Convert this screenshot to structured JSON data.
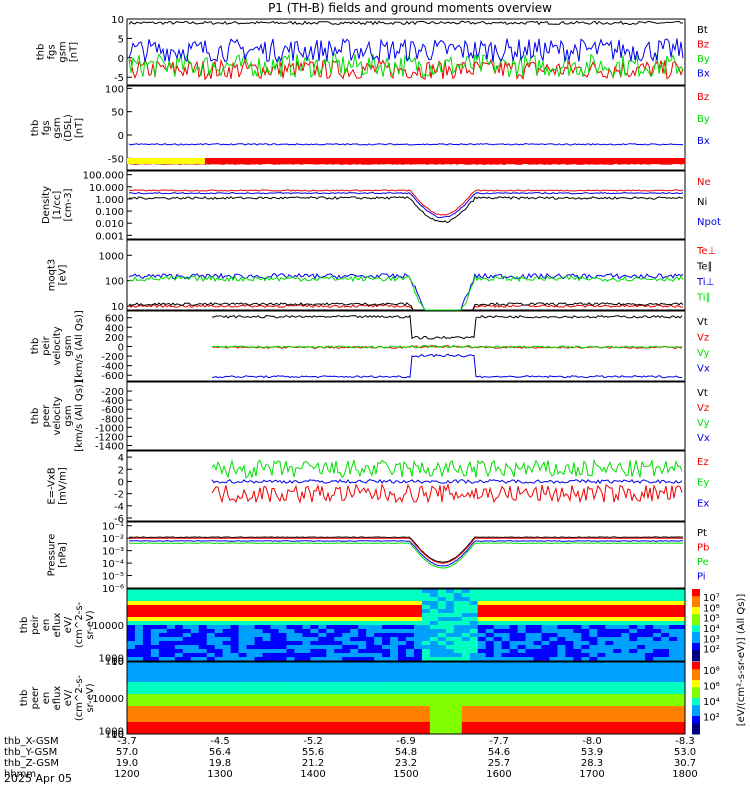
{
  "title": "P1 (TH-B) fields and ground moments overview",
  "date_label": "2025 Apr 05",
  "colors": {
    "black": "#000000",
    "red": "#ee0000",
    "green": "#00dd00",
    "blue": "#0000ee",
    "yellow": "#ffff00",
    "barred": "#ff0000"
  },
  "chart_data": [
    {
      "id": "fgs",
      "type": "line",
      "ylabel": [
        "thb",
        "fgs",
        "gsm",
        "[nT]"
      ],
      "ylim": [
        -7,
        10
      ],
      "yticks": [
        "10",
        "5",
        "0",
        "-5"
      ],
      "ytickvals": [
        10,
        5,
        0,
        -5
      ],
      "series": [
        {
          "name": "Bt",
          "color": "black",
          "base": 9,
          "noise": 0.4
        },
        {
          "name": "Bz",
          "color": "red",
          "base": -3,
          "noise": 2.5
        },
        {
          "name": "By",
          "color": "green",
          "base": -2,
          "noise": 3
        },
        {
          "name": "Bx",
          "color": "blue",
          "base": 2,
          "noise": 3
        }
      ]
    },
    {
      "id": "fgs_dsl",
      "type": "line",
      "ylabel": [
        "thb",
        "fgs",
        "gsm",
        "(DSL)",
        "[nT]"
      ],
      "ylim": [
        -75,
        105
      ],
      "yticks": [
        "100",
        "50",
        "0",
        "-50"
      ],
      "ytickvals": [
        100,
        50,
        0,
        -50
      ],
      "series": [
        {
          "name": "Bz",
          "color": "red",
          "base": -62,
          "noise": 1
        },
        {
          "name": "By",
          "color": "green",
          "base": -60,
          "noise": 2
        },
        {
          "name": "Bx",
          "color": "blue",
          "base": -20,
          "noise": 1.5
        }
      ]
    },
    {
      "id": "density",
      "type": "line",
      "log": true,
      "ylabel": [
        "Density",
        "[1/cc]",
        "[cm-3]"
      ],
      "ylim": [
        0.0005,
        200
      ],
      "yticks": [
        "100.000",
        "10.000",
        "1.000",
        "0.100",
        "0.010",
        "0.001"
      ],
      "ytickvals": [
        100,
        10,
        1,
        0.1,
        0.01,
        0.001
      ],
      "series": [
        {
          "name": "Ne",
          "color": "red",
          "base": 5,
          "noise": 0.1
        },
        {
          "name": "Ni",
          "color": "black",
          "base": 1.2,
          "noise": 0.2
        },
        {
          "name": "Npot",
          "color": "blue",
          "base": 3,
          "noise": 0.1
        }
      ]
    },
    {
      "id": "temp",
      "type": "line",
      "log": true,
      "ylabel": [
        "moqt3",
        "[eV]"
      ],
      "ylim": [
        7,
        4000
      ],
      "yticks": [
        "1000",
        "100",
        "10"
      ],
      "ytickvals": [
        1000,
        100,
        10
      ],
      "series": [
        {
          "name": "Te⊥",
          "color": "red",
          "base": 10,
          "noise": 0.1
        },
        {
          "name": "Te∥",
          "color": "black",
          "base": 12,
          "noise": 0.1
        },
        {
          "name": "Ti⊥",
          "color": "blue",
          "base": 150,
          "noise": 0.2
        },
        {
          "name": "Ti∥",
          "color": "green",
          "base": 120,
          "noise": 0.2
        }
      ]
    },
    {
      "id": "vel_i",
      "type": "line",
      "ylabel": [
        "thb",
        "peir",
        "velocity",
        "gsm",
        "[km/s (All Qs)]"
      ],
      "ylim": [
        -720,
        740
      ],
      "yticks": [
        "600",
        "400",
        "200",
        "0",
        "-200",
        "-400",
        "-600"
      ],
      "ytickvals": [
        600,
        400,
        200,
        0,
        -200,
        -400,
        -600
      ],
      "series": [
        {
          "name": "Vt",
          "color": "black",
          "base": 620,
          "noise": 25
        },
        {
          "name": "Vz",
          "color": "red",
          "base": -20,
          "noise": 20
        },
        {
          "name": "Vy",
          "color": "green",
          "base": -10,
          "noise": 20
        },
        {
          "name": "Vx",
          "color": "blue",
          "base": -630,
          "noise": 20
        }
      ]
    },
    {
      "id": "vel_e",
      "type": "line",
      "ylabel": [
        "thb",
        "peer",
        "velocity",
        "gsm",
        "[km/s (All Qs)]"
      ],
      "ylim": [
        -1500,
        0
      ],
      "yticks": [
        "-200",
        "-400",
        "-600",
        "-800",
        "-1000",
        "-1200",
        "-1400"
      ],
      "ytickvals": [
        -200,
        -400,
        -600,
        -800,
        -1000,
        -1200,
        -1400
      ],
      "series": [
        {
          "name": "Vt",
          "color": "black"
        },
        {
          "name": "Vz",
          "color": "red"
        },
        {
          "name": "Vy",
          "color": "green"
        },
        {
          "name": "Vx",
          "color": "blue"
        }
      ]
    },
    {
      "id": "efield",
      "type": "line",
      "ylabel": [
        "E=-VxB",
        "[mV/m]"
      ],
      "ylim": [
        -6.5,
        5
      ],
      "yticks": [
        "4",
        "2",
        "0",
        "-2",
        "-4",
        "-6"
      ],
      "ytickvals": [
        4,
        2,
        0,
        -2,
        -4,
        -6
      ],
      "series": [
        {
          "name": "Ez",
          "color": "red",
          "base": -2,
          "noise": 1.5
        },
        {
          "name": "Ey",
          "color": "green",
          "base": 2,
          "noise": 1.5
        },
        {
          "name": "Ex",
          "color": "blue",
          "base": 0,
          "noise": 0.3
        }
      ]
    },
    {
      "id": "pressure",
      "type": "line",
      "log": true,
      "ylabel": [
        "Pressure",
        "[nPa]"
      ],
      "ylim": [
        1e-06,
        0.2
      ],
      "yticks": [
        "10⁻¹",
        "10⁻²",
        "10⁻³",
        "10⁻⁴",
        "10⁻⁵",
        "10⁻⁶"
      ],
      "ytickvals": [
        0.1,
        0.01,
        0.001,
        0.0001,
        1e-05,
        1e-06
      ],
      "series": [
        {
          "name": "Pt",
          "color": "black",
          "base": 0.012,
          "noise": 0.05
        },
        {
          "name": "Pb",
          "color": "red",
          "base": 0.01,
          "noise": 0.02
        },
        {
          "name": "Pe",
          "color": "green",
          "base": 0.004,
          "noise": 0.05
        },
        {
          "name": "Pi",
          "color": "blue",
          "base": 0.006,
          "noise": 0.05
        }
      ]
    },
    {
      "id": "spec_i",
      "type": "heatmap",
      "ylabel": [
        "thb",
        "peir",
        "en",
        "eflux",
        "eV/",
        "(cm^2-s-",
        "sr-eV)"
      ],
      "ylim": [
        7,
        20000
      ],
      "yticks": [
        "10000",
        "1000",
        "100",
        "10"
      ],
      "ytickvals": [
        10000,
        1000,
        100,
        10
      ],
      "colorbar_ticks": [
        "10⁷",
        "10⁶",
        "10⁵",
        "10⁴",
        "10³",
        "10²"
      ]
    },
    {
      "id": "spec_e",
      "type": "heatmap",
      "ylabel": [
        "thb",
        "peer",
        "en",
        "eflux",
        "eV/",
        "(cm^2-s-",
        "sr-eV)"
      ],
      "ylim": [
        7,
        20000
      ],
      "yticks": [
        "10000",
        "1000",
        "100",
        "10"
      ],
      "ytickvals": [
        10000,
        1000,
        100,
        10
      ],
      "colorbar_ticks": [
        "10⁸",
        "10⁶",
        "10⁴",
        "10²"
      ]
    }
  ],
  "colorbar_label": "[eV/(cm²-s-sr-eV)] (All Qs)]",
  "time_axis": {
    "rows": [
      {
        "label": "thb_X-GSM",
        "values": [
          "-3.7",
          "-4.5",
          "-5.2",
          "-6.9",
          "-7.7",
          "-8.0",
          "-8.3"
        ]
      },
      {
        "label": "thb_Y-GSM",
        "values": [
          "57.0",
          "56.4",
          "55.6",
          "54.8",
          "54.6",
          "53.9",
          "53.0"
        ]
      },
      {
        "label": "thb_Z-GSM",
        "values": [
          "19.0",
          "19.8",
          "21.2",
          "23.2",
          "25.7",
          "28.3",
          "30.7"
        ]
      },
      {
        "label": "hhmm",
        "values": [
          "1200",
          "1300",
          "1400",
          "1500",
          "1600",
          "1700",
          "1800"
        ]
      }
    ]
  }
}
